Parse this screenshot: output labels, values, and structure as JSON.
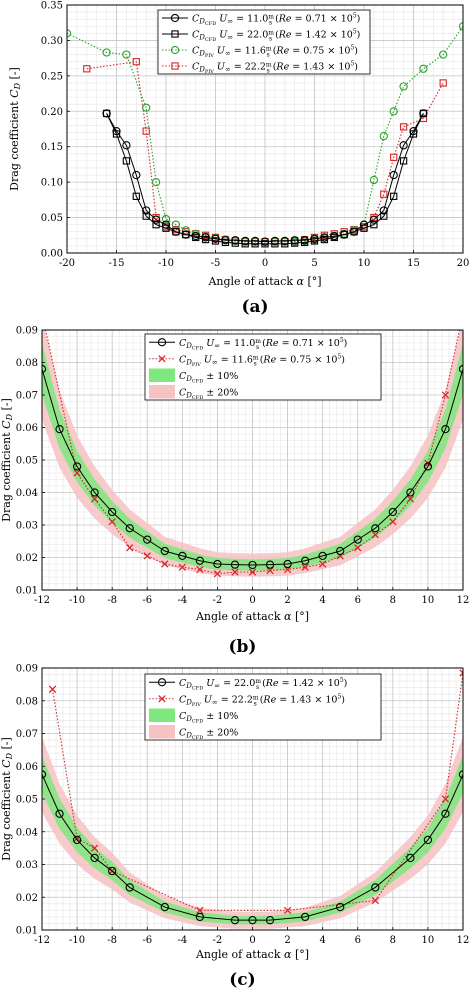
{
  "chart_data": [
    {
      "type": "line",
      "panel_label": "(a)",
      "xlabel": "Angle of attack α [°]",
      "ylabel": "Drag coefficient C_D [-]",
      "xlim": [
        -20,
        20
      ],
      "ylim": [
        0,
        0.35
      ],
      "xticks": [
        -20,
        -15,
        -10,
        -5,
        0,
        5,
        10,
        15,
        20
      ],
      "yticks": [
        0,
        0.05,
        0.1,
        0.15,
        0.2,
        0.25,
        0.3,
        0.35
      ],
      "ytick_labels": [
        "0.00",
        "0.05",
        "0.10",
        "0.15",
        "0.20",
        "0.25",
        "0.30",
        "0.35"
      ],
      "grid": true,
      "legend_position": "top-center",
      "series": [
        {
          "name": "C_D_CFD  U∞ = 11.0 m/s (Re = 0.71 × 10^5)",
          "color": "#000000",
          "marker": "circle",
          "dash": "solid",
          "x": [
            -16,
            -15,
            -14,
            -13,
            -12,
            -11,
            -10,
            -9,
            -8,
            -7,
            -6,
            -5,
            -4,
            -3,
            -2,
            -1,
            0,
            1,
            2,
            3,
            4,
            5,
            6,
            7,
            8,
            9,
            10,
            11,
            12,
            13,
            14,
            15,
            16
          ],
          "y": [
            0.197,
            0.172,
            0.152,
            0.11,
            0.06,
            0.047,
            0.04,
            0.03,
            0.026,
            0.024,
            0.022,
            0.02,
            0.018,
            0.018,
            0.017,
            0.017,
            0.016,
            0.017,
            0.017,
            0.018,
            0.018,
            0.02,
            0.022,
            0.024,
            0.026,
            0.03,
            0.04,
            0.047,
            0.06,
            0.11,
            0.152,
            0.172,
            0.197
          ]
        },
        {
          "name": "C_D_CFD  U∞ = 22.0 m/s (Re = 1.42 × 10^5)",
          "color": "#000000",
          "marker": "square",
          "dash": "solid",
          "x": [
            -16,
            -15,
            -14,
            -13,
            -12,
            -11,
            -10,
            -9,
            -8,
            -7,
            -6,
            -5,
            -4,
            -3,
            -2,
            -1,
            0,
            1,
            2,
            3,
            4,
            5,
            6,
            7,
            8,
            9,
            10,
            11,
            12,
            13,
            14,
            15,
            16
          ],
          "y": [
            0.197,
            0.168,
            0.13,
            0.08,
            0.052,
            0.04,
            0.035,
            0.03,
            0.026,
            0.022,
            0.019,
            0.017,
            0.015,
            0.014,
            0.013,
            0.013,
            0.013,
            0.013,
            0.013,
            0.014,
            0.015,
            0.017,
            0.019,
            0.022,
            0.026,
            0.03,
            0.035,
            0.04,
            0.052,
            0.08,
            0.13,
            0.168,
            0.197
          ]
        },
        {
          "name": "C_D_PIV  U∞ = 11.6 m/s (Re = 0.75 × 10^5)",
          "color": "#2ca02c",
          "marker": "circle",
          "dash": "dotted",
          "x": [
            -20,
            -16,
            -14,
            -12,
            -11,
            -10,
            -9,
            -8,
            -7,
            -6,
            -5,
            -4,
            -3,
            -2,
            -1,
            0,
            1,
            2,
            3,
            4,
            5,
            6,
            7,
            8,
            9,
            10,
            11,
            12,
            13,
            14,
            16,
            18,
            20
          ],
          "y": [
            0.31,
            0.283,
            0.28,
            0.205,
            0.1,
            0.048,
            0.04,
            0.032,
            0.027,
            0.023,
            0.021,
            0.019,
            0.017,
            0.016,
            0.016,
            0.016,
            0.016,
            0.016,
            0.016,
            0.017,
            0.019,
            0.021,
            0.023,
            0.027,
            0.032,
            0.04,
            0.103,
            0.165,
            0.2,
            0.235,
            0.26,
            0.28,
            0.32
          ]
        },
        {
          "name": "C_D_PIV  U∞ = 22.2 m/s (Re = 1.43 × 10^5)",
          "color": "#d62728",
          "marker": "square",
          "dash": "dotted",
          "x": [
            -18,
            -13,
            -12,
            -11,
            -10,
            -9,
            -8,
            -7,
            -6,
            -5,
            -4,
            -3,
            -2,
            -1,
            0,
            1,
            2,
            3,
            4,
            5,
            6,
            7,
            8,
            9,
            10,
            11,
            12,
            13,
            14,
            16,
            18
          ],
          "y": [
            0.26,
            0.27,
            0.172,
            0.05,
            0.037,
            0.033,
            0.03,
            0.027,
            0.025,
            0.022,
            0.019,
            0.017,
            0.016,
            0.016,
            0.016,
            0.016,
            0.016,
            0.017,
            0.019,
            0.022,
            0.025,
            0.027,
            0.03,
            0.033,
            0.037,
            0.05,
            0.083,
            0.135,
            0.178,
            0.19,
            0.24
          ]
        }
      ]
    },
    {
      "type": "line",
      "panel_label": "(b)",
      "xlabel": "Angle of attack α [°]",
      "ylabel": "Drag coefficient C_D [-]",
      "xlim": [
        -12,
        12
      ],
      "ylim": [
        0.01,
        0.09
      ],
      "xticks": [
        -12,
        -10,
        -8,
        -6,
        -4,
        -2,
        0,
        2,
        4,
        6,
        8,
        10,
        12
      ],
      "yticks": [
        0.01,
        0.02,
        0.03,
        0.04,
        0.05,
        0.06,
        0.07,
        0.08,
        0.09
      ],
      "ytick_labels": [
        "0.01",
        "0.02",
        "0.03",
        "0.04",
        "0.05",
        "0.06",
        "0.07",
        "0.08",
        "0.09"
      ],
      "grid": true,
      "legend_position": "top-center",
      "bands": [
        {
          "name": "C_D_CFD ± 10%",
          "fraction": 0.1,
          "color": "#7ee87e"
        },
        {
          "name": "C_D_CFD ± 20%",
          "fraction": 0.2,
          "color": "#f6c2c2"
        }
      ],
      "series": [
        {
          "name": "C_D_CFD  U∞ = 11.0 m/s (Re = 0.71 × 10^5)",
          "color": "#000000",
          "marker": "circle",
          "dash": "solid",
          "x": [
            -12,
            -11,
            -10,
            -9,
            -8,
            -7,
            -6,
            -5,
            -4,
            -3,
            -2,
            -1,
            0,
            1,
            2,
            3,
            4,
            5,
            6,
            7,
            8,
            9,
            10,
            11,
            12
          ],
          "y": [
            0.078,
            0.0595,
            0.048,
            0.04,
            0.034,
            0.029,
            0.0255,
            0.022,
            0.0205,
            0.019,
            0.018,
            0.0178,
            0.0177,
            0.0178,
            0.018,
            0.019,
            0.0205,
            0.022,
            0.0255,
            0.029,
            0.034,
            0.04,
            0.048,
            0.0595,
            0.078
          ]
        },
        {
          "name": "C_D_PIV  U∞ = 11.6 m/s (Re = 0.75 × 10^5)",
          "color": "#d62728",
          "marker": "x",
          "dash": "dotted",
          "x": [
            -12,
            -10,
            -9,
            -8,
            -7,
            -6,
            -5,
            -4,
            -3,
            -2,
            -1,
            0,
            1,
            2,
            3,
            4,
            5,
            6,
            7,
            8,
            9,
            10,
            11,
            12
          ],
          "y": [
            0.095,
            0.046,
            0.038,
            0.031,
            0.023,
            0.0205,
            0.018,
            0.017,
            0.0163,
            0.015,
            0.0155,
            0.0155,
            0.016,
            0.0163,
            0.017,
            0.018,
            0.0205,
            0.023,
            0.027,
            0.031,
            0.038,
            0.049,
            0.07,
            0.095
          ]
        }
      ]
    },
    {
      "type": "line",
      "panel_label": "(c)",
      "xlabel": "Angle of attack α [°]",
      "ylabel": "Drag coefficient C_D [-]",
      "xlim": [
        -12,
        12
      ],
      "ylim": [
        0.01,
        0.09
      ],
      "xticks": [
        -12,
        -10,
        -8,
        -6,
        -4,
        -2,
        0,
        2,
        4,
        6,
        8,
        10,
        12
      ],
      "yticks": [
        0.01,
        0.02,
        0.03,
        0.04,
        0.05,
        0.06,
        0.07,
        0.08,
        0.09
      ],
      "ytick_labels": [
        "0.01",
        "0.02",
        "0.03",
        "0.04",
        "0.05",
        "0.06",
        "0.07",
        "0.08",
        "0.09"
      ],
      "grid": true,
      "legend_position": "top-center",
      "bands": [
        {
          "name": "C_D_CFD ± 10%",
          "fraction": 0.1,
          "color": "#7ee87e"
        },
        {
          "name": "C_D_CFD ± 20%",
          "fraction": 0.2,
          "color": "#f6c2c2"
        }
      ],
      "series": [
        {
          "name": "C_D_CFD  U∞ = 22.0 m/s (Re = 1.42 × 10^5)",
          "color": "#000000",
          "marker": "circle",
          "dash": "solid",
          "x": [
            -12,
            -11,
            -10,
            -9,
            -8,
            -7,
            -5,
            -3,
            -1,
            0,
            1,
            3,
            5,
            7,
            9,
            10,
            11,
            12
          ],
          "y": [
            0.0575,
            0.0455,
            0.0375,
            0.032,
            0.028,
            0.023,
            0.017,
            0.014,
            0.013,
            0.013,
            0.013,
            0.014,
            0.017,
            0.023,
            0.032,
            0.0375,
            0.0455,
            0.0575
          ]
        },
        {
          "name": "C_D_PIV  U∞ = 22.2 m/s (Re = 1.43 × 10^5)",
          "color": "#d62728",
          "marker": "x",
          "dash": "dotted",
          "x": [
            -11.4,
            -10,
            -9,
            -8,
            -3,
            2,
            7,
            11,
            12
          ],
          "y": [
            0.0835,
            0.038,
            0.035,
            0.028,
            0.016,
            0.016,
            0.019,
            0.05,
            0.0885
          ]
        }
      ]
    }
  ]
}
